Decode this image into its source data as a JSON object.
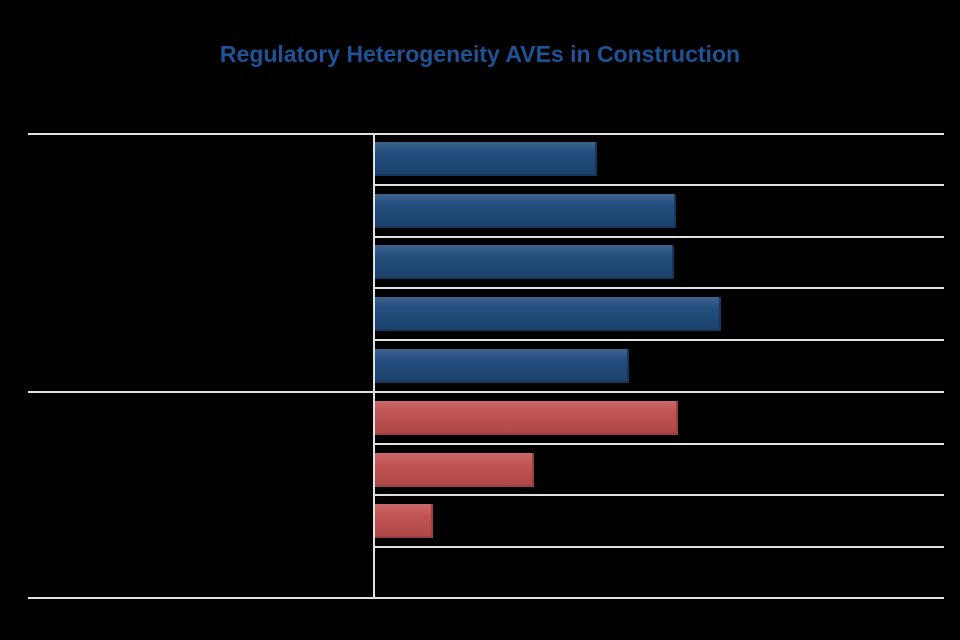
{
  "colors": {
    "background": "#000000",
    "title": "#1f5296",
    "gridline": "#e0e0e0",
    "axis_line": "#e0e0e0",
    "bar_blue": "#1f4a7b",
    "bar_blue_edge": "#16365c",
    "bar_red": "#c05150",
    "bar_red_edge": "#9c403f"
  },
  "chart_data": {
    "type": "bar",
    "orientation": "horizontal",
    "title": "Regulatory Heterogeneity AVEs in Construction",
    "xlabel": "",
    "ylabel": "",
    "value_axis_ticks_visible": false,
    "category_labels_visible": false,
    "legend": "none",
    "gridlines": "between-rows",
    "value_scale": "fraction of plot width (no numeric axis labels visible)",
    "rows": [
      {
        "group": "blue",
        "length_fraction": 0.39
      },
      {
        "group": "blue",
        "length_fraction": 0.529
      },
      {
        "group": "blue",
        "length_fraction": 0.525
      },
      {
        "group": "blue",
        "length_fraction": 0.608
      },
      {
        "group": "blue",
        "length_fraction": 0.447
      },
      {
        "group": "red",
        "length_fraction": 0.532
      },
      {
        "group": "red",
        "length_fraction": 0.28
      },
      {
        "group": "red",
        "length_fraction": 0.102
      },
      {
        "group": "red",
        "length_fraction": null
      }
    ]
  }
}
